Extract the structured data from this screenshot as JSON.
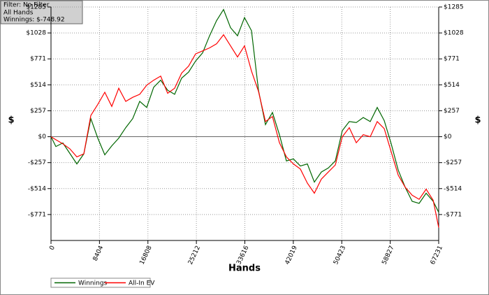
{
  "chart_data": {
    "type": "line",
    "info_lines": [
      "Filter: No Filter",
      "All Hands",
      "Winnings: $-748.92"
    ],
    "xlabel": "Hands",
    "ylabel": "$",
    "legend": "bottom-left",
    "grid": true,
    "xlim": [
      0,
      67231
    ],
    "ylim": [
      -1028,
      1285
    ],
    "xticks": [
      0,
      8404,
      16808,
      25212,
      33616,
      42019,
      50423,
      58827,
      67231
    ],
    "yticks": [
      {
        "value": 1285,
        "label": "$1285"
      },
      {
        "value": 1028,
        "label": "$1028"
      },
      {
        "value": 771,
        "label": "$771"
      },
      {
        "value": 514,
        "label": "$514"
      },
      {
        "value": 257,
        "label": "$257"
      },
      {
        "value": 0,
        "label": "$0"
      },
      {
        "value": -257,
        "label": "-$257"
      },
      {
        "value": -514,
        "label": "-$514"
      },
      {
        "value": -771,
        "label": "-$771"
      }
    ],
    "x": [
      0,
      848,
      2059,
      3271,
      4482,
      5694,
      6905,
      8117,
      9328,
      10540,
      11751,
      12963,
      14174,
      15385,
      16597,
      17808,
      19020,
      20231,
      21443,
      22654,
      23866,
      25077,
      26289,
      27500,
      28712,
      29923,
      31135,
      32346,
      33557,
      34769,
      35980,
      37192,
      38403,
      39615,
      40826,
      42038,
      43249,
      44461,
      45672,
      46884,
      48095,
      49307,
      50518,
      51730,
      52941,
      54153,
      55364,
      56576,
      57787,
      58999,
      60210,
      61422,
      62633,
      63845,
      65056,
      66268,
      67231
    ],
    "series": [
      {
        "name": "Winnings",
        "color": "#006600",
        "values": [
          0,
          -97,
          -62,
          -166,
          -270,
          -170,
          180,
          -14,
          -180,
          -90,
          -14,
          90,
          180,
          350,
          290,
          490,
          560,
          460,
          420,
          580,
          640,
          750,
          830,
          1000,
          1150,
          1260,
          1080,
          1000,
          1180,
          1050,
          460,
          120,
          240,
          20,
          -240,
          -220,
          -290,
          -270,
          -450,
          -350,
          -310,
          -240,
          60,
          150,
          140,
          190,
          150,
          290,
          160,
          -70,
          -330,
          -500,
          -640,
          -660,
          -560,
          -640,
          -749
        ]
      },
      {
        "name": "All-In EV",
        "color": "#ff0000",
        "values": [
          0,
          -30,
          -70,
          -120,
          -200,
          -170,
          210,
          320,
          440,
          300,
          480,
          350,
          390,
          420,
          510,
          560,
          600,
          430,
          480,
          630,
          700,
          820,
          850,
          880,
          920,
          1010,
          900,
          790,
          900,
          650,
          450,
          150,
          200,
          -60,
          -200,
          -270,
          -320,
          -460,
          -560,
          -420,
          -350,
          -280,
          0,
          90,
          -60,
          20,
          0,
          150,
          80,
          -150,
          -380,
          -500,
          -580,
          -620,
          -520,
          -630,
          -900
        ]
      }
    ]
  }
}
